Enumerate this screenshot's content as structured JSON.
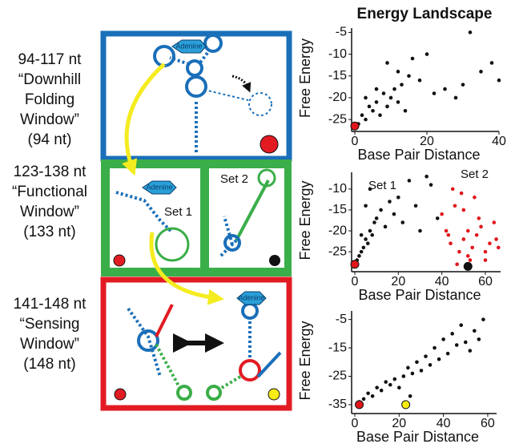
{
  "windows": [
    {
      "lines": [
        "94-117 nt",
        "“Downhill",
        "Folding",
        "Window”",
        "(94 nt)"
      ]
    },
    {
      "lines": [
        "123-138 nt",
        "“Functional",
        "Window”",
        "(133 nt)"
      ]
    },
    {
      "lines": [
        "141-148 nt",
        "“Sensing",
        "Window”",
        "(148 nt)"
      ]
    }
  ],
  "diagram": {
    "adenine": [
      "Adenine",
      "Adenine",
      "Adenine"
    ],
    "set_labels": [
      "Set 1",
      "Set 2"
    ]
  },
  "chart_data": [
    {
      "type": "scatter",
      "title": "Energy Landscape",
      "x_label": "Base Pair Distance",
      "y_label": "Free Energy",
      "xlim": [
        0,
        40
      ],
      "ylim": [
        -27,
        -4
      ],
      "xticks": [
        0,
        20,
        40
      ],
      "yticks": [
        -5,
        -10,
        -15,
        -20,
        -25
      ],
      "color": "#111111",
      "x": [
        1,
        2,
        3,
        4,
        5,
        6,
        7,
        8,
        9,
        10,
        11,
        12,
        13,
        14,
        15,
        3,
        6,
        9,
        12,
        16,
        18,
        20,
        22,
        25,
        28,
        30,
        32,
        35,
        38,
        40
      ],
      "values": [
        -26,
        -24,
        -25,
        -22,
        -23,
        -21,
        -24,
        -19,
        -22,
        -20,
        -18,
        -21,
        -17,
        -23,
        -15,
        -20,
        -18,
        -12,
        -14,
        -11,
        -16,
        -10,
        -19,
        -18,
        -20,
        -17,
        -5,
        -14,
        -12,
        -16
      ],
      "highlights": [
        {
          "x": 0,
          "y": -26.5,
          "color": "#e0161b"
        }
      ]
    },
    {
      "type": "scatter",
      "x_label": "Base Pair Distance",
      "y_label": "Free Energy",
      "xlim": [
        0,
        67
      ],
      "ylim": [
        -29,
        -6
      ],
      "xticks": [
        0,
        20,
        40,
        60
      ],
      "yticks": [
        -10,
        -15,
        -20,
        -25
      ],
      "series": [
        {
          "name": "Set 1",
          "color": "#111111",
          "x": [
            1,
            2,
            3,
            4,
            5,
            6,
            7,
            8,
            9,
            10,
            12,
            14,
            16,
            18,
            20,
            3,
            5,
            7,
            22,
            25,
            28,
            30,
            33,
            35,
            38
          ],
          "values": [
            -27,
            -26,
            -25,
            -24,
            -22,
            -23,
            -20,
            -21,
            -18,
            -17,
            -15,
            -19,
            -13,
            -16,
            -12,
            -21,
            -14,
            -10,
            -18,
            -8,
            -14,
            -20,
            -7,
            -9,
            -17
          ]
        },
        {
          "name": "Set 2",
          "color": "#e0161b",
          "x": [
            40,
            42,
            44,
            46,
            48,
            50,
            52,
            54,
            56,
            58,
            60,
            62,
            64,
            45,
            50,
            55,
            60,
            65,
            47,
            53,
            57,
            43,
            66,
            52,
            49
          ],
          "values": [
            -16,
            -20,
            -23,
            -14,
            -25,
            -22,
            -26,
            -24,
            -21,
            -19,
            -27,
            -23,
            -18,
            -10,
            -15,
            -12,
            -25,
            -22,
            -28,
            -27,
            -17,
            -21,
            -24,
            -20,
            -11
          ]
        }
      ],
      "highlights": [
        {
          "x": 0,
          "y": -28,
          "color": "#e0161b"
        },
        {
          "x": 52,
          "y": -28.5,
          "color": "#111111"
        }
      ]
    },
    {
      "type": "scatter",
      "x_label": "Base Pair Distance",
      "y_label": "Free Energy",
      "xlim": [
        0,
        64
      ],
      "ylim": [
        -37,
        -2
      ],
      "xticks": [
        0,
        20,
        40,
        60
      ],
      "yticks": [
        -5,
        -15,
        -25,
        -35
      ],
      "color": "#111111",
      "x": [
        2,
        4,
        6,
        8,
        10,
        12,
        14,
        16,
        18,
        20,
        22,
        24,
        26,
        28,
        30,
        32,
        34,
        36,
        38,
        40,
        42,
        44,
        46,
        48,
        50,
        52,
        54,
        56,
        58,
        25
      ],
      "values": [
        -34,
        -33,
        -31,
        -32,
        -29,
        -30,
        -27,
        -28,
        -26,
        -29,
        -25,
        -22,
        -24,
        -20,
        -23,
        -18,
        -21,
        -15,
        -19,
        -12,
        -17,
        -10,
        -14,
        -7,
        -13,
        -16,
        -9,
        -12,
        -5,
        -32
      ],
      "highlights": [
        {
          "x": 2,
          "y": -35,
          "color": "#e0161b"
        },
        {
          "x": 23,
          "y": -35,
          "color": "#f7ec13"
        }
      ]
    }
  ]
}
